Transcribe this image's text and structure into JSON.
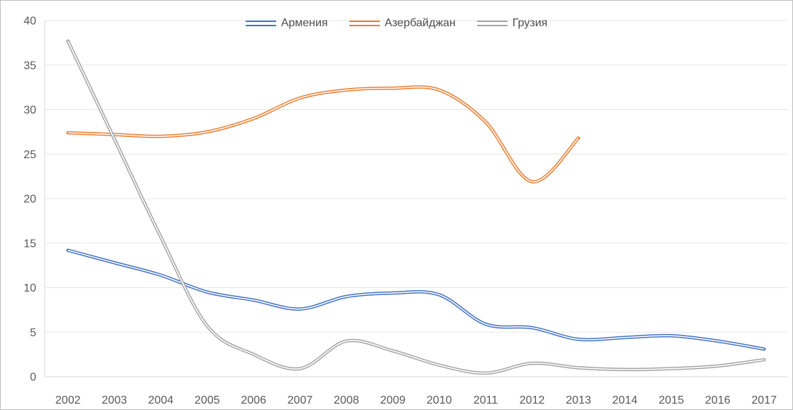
{
  "chart_data": {
    "type": "line",
    "title": "",
    "xlabel": "",
    "ylabel": "",
    "x_categories": [
      "2002",
      "2003",
      "2004",
      "2005",
      "2006",
      "2007",
      "2008",
      "2009",
      "2010",
      "2011",
      "2012",
      "2013",
      "2014",
      "2015",
      "2016",
      "2017"
    ],
    "series": [
      {
        "name": "Армения",
        "color": "#4472C4",
        "values": [
          14.2,
          12.8,
          11.4,
          9.5,
          8.6,
          7.6,
          9.0,
          9.4,
          9.2,
          5.9,
          5.5,
          4.2,
          4.4,
          4.6,
          4.0,
          3.1
        ]
      },
      {
        "name": "Азербайджан",
        "color": "#ED7D31",
        "values": [
          27.4,
          27.2,
          27.0,
          27.5,
          29.0,
          31.3,
          32.2,
          32.4,
          32.2,
          28.6,
          21.9,
          26.8,
          null,
          null,
          null,
          null
        ]
      },
      {
        "name": "Грузия",
        "color": "#A5A5A5",
        "values": [
          37.7,
          26.7,
          15.7,
          5.7,
          2.5,
          0.9,
          4.0,
          2.9,
          1.3,
          0.4,
          1.5,
          1.0,
          0.8,
          0.9,
          1.2,
          1.9
        ]
      }
    ],
    "ylim": [
      0,
      40
    ],
    "ytick_interval": 5,
    "y_tick_labels": [
      "0",
      "5",
      "10",
      "15",
      "20",
      "25",
      "30",
      "35",
      "40"
    ],
    "grid": true,
    "smoothed_lines": true,
    "line_style": "double",
    "legend_position": "top-center"
  },
  "colors": {
    "background": "#FFFFFF",
    "frame_border": "#BDBDBD",
    "gridline": "#E7E7E7",
    "axis_line": "#D9D9D9",
    "tick_text": "#595959",
    "legend_text": "#4D4D4D"
  }
}
